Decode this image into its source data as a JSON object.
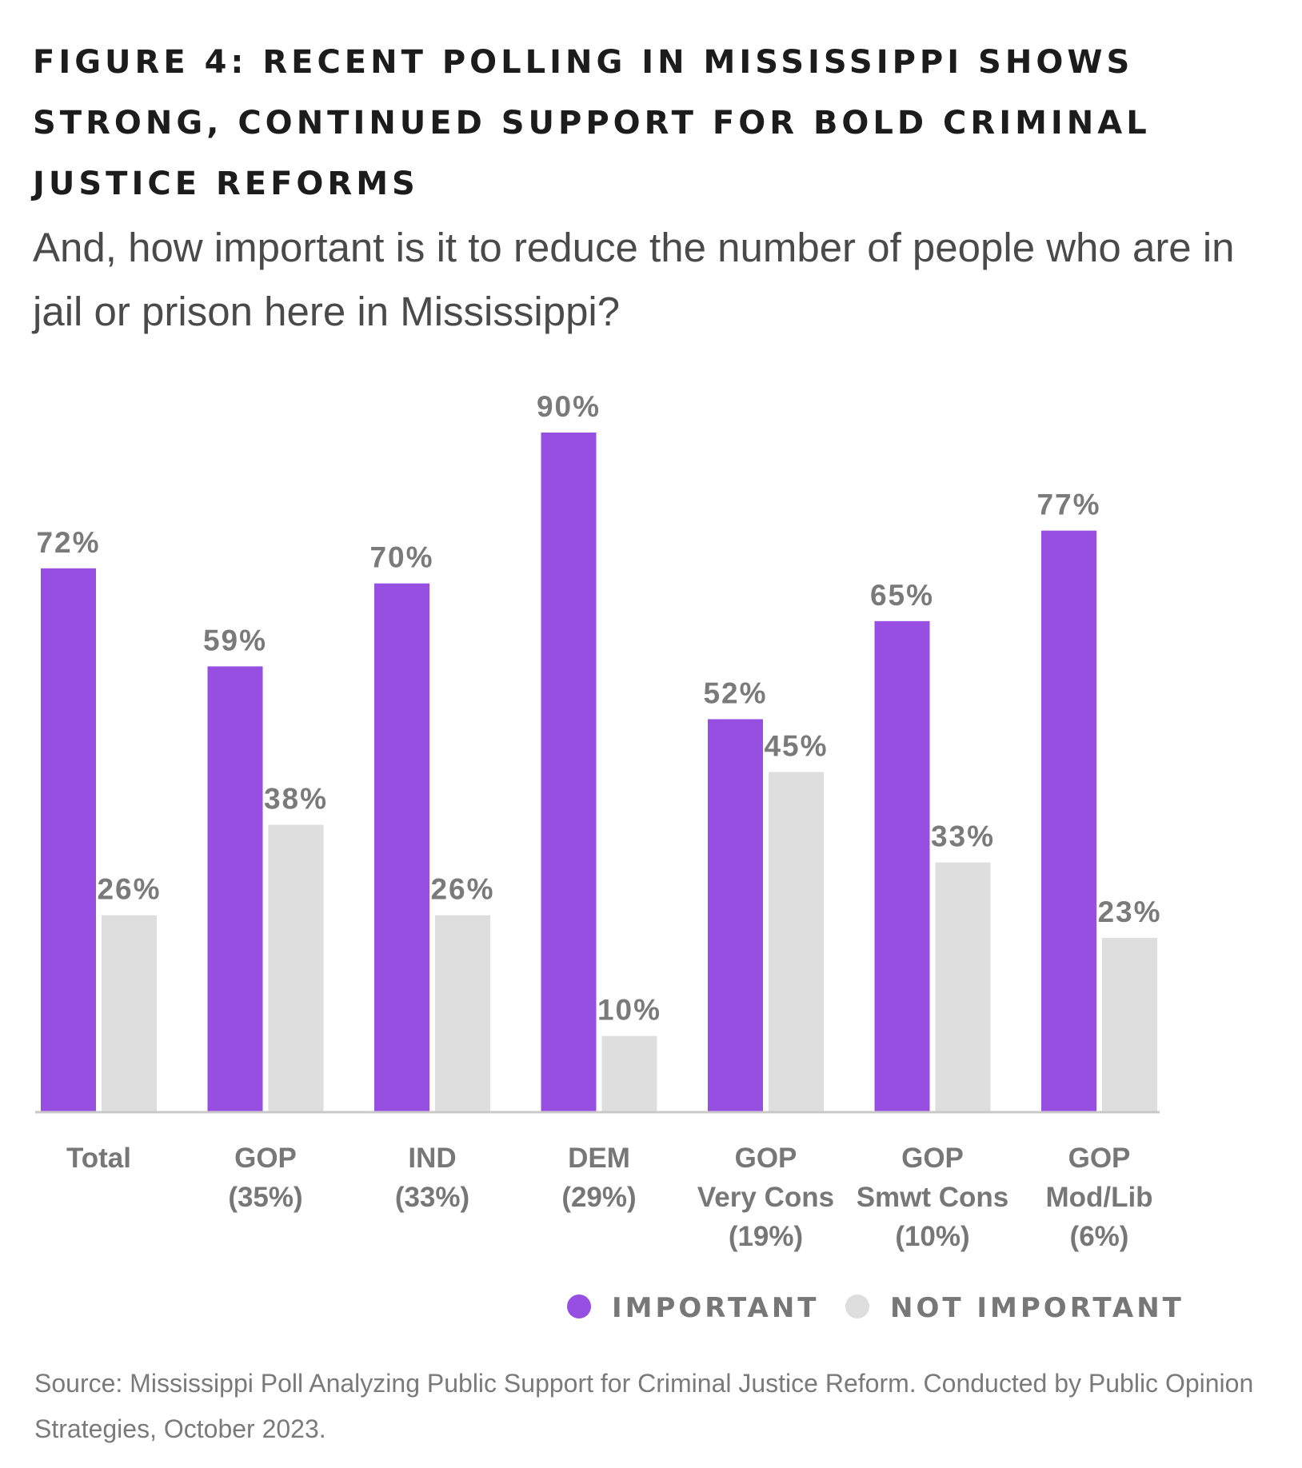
{
  "chart_data": {
    "type": "bar",
    "title": "FIGURE 4: RECENT POLLING IN MISSISSIPPI SHOWS STRONG, CONTINUED SUPPORT FOR BOLD CRIMINAL JUSTICE REFORMS",
    "subtitle": "And, how important is it to reduce the number of people who are in jail or prison here in Mississippi?",
    "categories": [
      [
        "Total"
      ],
      [
        "GOP",
        "(35%)"
      ],
      [
        "IND",
        "(33%)"
      ],
      [
        "DEM",
        "(29%)"
      ],
      [
        "GOP",
        "Very Cons",
        "(19%)"
      ],
      [
        "GOP",
        "Smwt Cons",
        "(10%)"
      ],
      [
        "GOP",
        "Mod/Lib",
        "(6%)"
      ]
    ],
    "series": [
      {
        "name": "IMPORTANT",
        "color": "#964fe0",
        "values": [
          72,
          59,
          70,
          90,
          52,
          65,
          77
        ]
      },
      {
        "name": "NOT IMPORTANT",
        "color": "#dedede",
        "values": [
          26,
          38,
          26,
          10,
          45,
          33,
          23
        ]
      }
    ],
    "value_suffix": "%",
    "ylim": [
      0,
      90
    ],
    "grid": false,
    "legend": "bottom-right",
    "source": "Source: Mississippi Poll Analyzing Public Support for Criminal Justice Reform. Conducted by Public Opinion Strategies, October 2023."
  }
}
